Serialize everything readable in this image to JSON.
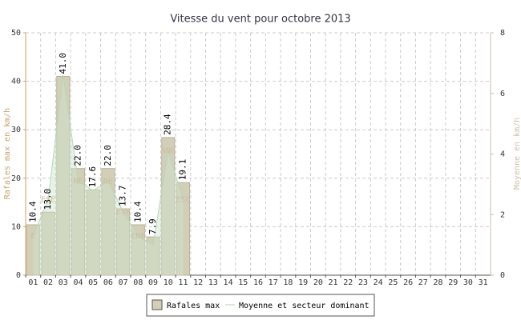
{
  "chart_data": {
    "type": "bar",
    "title": "Vitesse du vent pour octobre 2013",
    "y_label": "Rafales max en km/h",
    "y2_label": "Moyenne en km/h",
    "categories": [
      "01",
      "02",
      "03",
      "04",
      "05",
      "06",
      "07",
      "08",
      "09",
      "10",
      "11",
      "12",
      "13",
      "14",
      "15",
      "16",
      "17",
      "18",
      "19",
      "20",
      "21",
      "22",
      "23",
      "24",
      "25",
      "26",
      "27",
      "28",
      "29",
      "30",
      "31"
    ],
    "ylim": [
      0,
      50
    ],
    "yticks": [
      0,
      10,
      20,
      30,
      40,
      50
    ],
    "y2lim": [
      0,
      8
    ],
    "y2ticks": [
      0,
      2,
      4,
      6,
      8
    ],
    "grid": true,
    "series": [
      {
        "name": "Rafales max",
        "color": "#d3cfb6",
        "values": [
          10.4,
          13.0,
          41.0,
          22.0,
          17.6,
          22.0,
          13.7,
          10.4,
          7.9,
          28.4,
          19.1,
          null,
          null,
          null,
          null,
          null,
          null,
          null,
          null,
          null,
          null,
          null,
          null,
          null,
          null,
          null,
          null,
          null,
          null,
          null,
          null
        ],
        "value_labels": [
          "10.4",
          "13.0",
          "41.0",
          "22.0",
          "17.6",
          "22.0",
          "13.7",
          "10.4",
          "7.9",
          "28.4",
          "19.1",
          null,
          null,
          null,
          null,
          null,
          null,
          null,
          null,
          null,
          null,
          null,
          null,
          null,
          null,
          null,
          null,
          null,
          null,
          null,
          null
        ]
      },
      {
        "name": "Moyenne et secteur dominant",
        "color": "#cfe3cf",
        "axis": "y2",
        "values": [
          1.3,
          2.5,
          6.6,
          3.1,
          2.8,
          3.1,
          2.1,
          1.3,
          1.0,
          4.1,
          2.5,
          null,
          null,
          null,
          null,
          null,
          null,
          null,
          null,
          null,
          null,
          null,
          null,
          null,
          null,
          null,
          null,
          null,
          null,
          null,
          null
        ],
        "labels": [
          "E",
          "ESE",
          null,
          "NE",
          null,
          "NE",
          "ESE",
          "ENE",
          null,
          "NNE",
          "ESE",
          null,
          null,
          null,
          null,
          null,
          null,
          null,
          null,
          null,
          null,
          null,
          null,
          null,
          null,
          null,
          null,
          null,
          null,
          null,
          null
        ]
      }
    ]
  }
}
